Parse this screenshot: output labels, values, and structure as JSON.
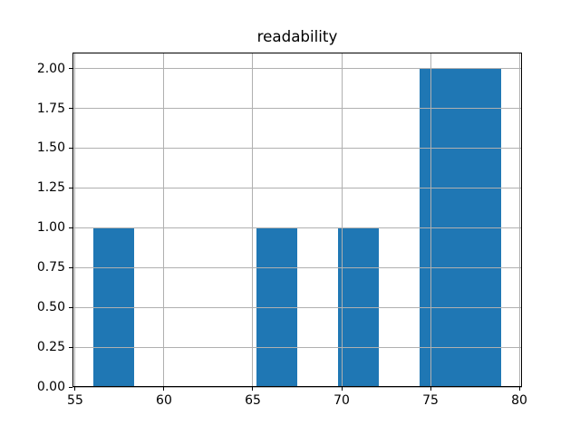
{
  "chart_data": {
    "type": "bar",
    "subtype": "histogram",
    "title": "readability",
    "xlabel": "",
    "ylabel": "",
    "bin_edges": [
      56.0,
      58.3,
      60.6,
      62.9,
      65.2,
      67.5,
      69.8,
      72.1,
      74.4,
      76.7,
      79.0
    ],
    "counts": [
      1,
      0,
      0,
      0,
      1,
      0,
      1,
      0,
      2,
      2
    ],
    "xlim": [
      54.85,
      80.15
    ],
    "ylim": [
      0,
      2.1
    ],
    "x_tick_values": [
      55,
      60,
      65,
      70,
      75,
      80
    ],
    "x_tick_labels": [
      "55",
      "60",
      "65",
      "70",
      "75",
      "80"
    ],
    "y_tick_values": [
      0,
      0.25,
      0.5,
      0.75,
      1.0,
      1.25,
      1.5,
      1.75,
      2.0
    ],
    "y_tick_labels": [
      "0.00",
      "0.25",
      "0.50",
      "0.75",
      "1.00",
      "1.25",
      "1.50",
      "1.75",
      "2.00"
    ],
    "grid": true,
    "grid_on_top_of_bars": true,
    "legend": null,
    "colors": {
      "bar": "#1f77b4",
      "grid": "#b0b0b0",
      "spine": "#000000",
      "text": "#000000",
      "background": "#ffffff"
    }
  }
}
